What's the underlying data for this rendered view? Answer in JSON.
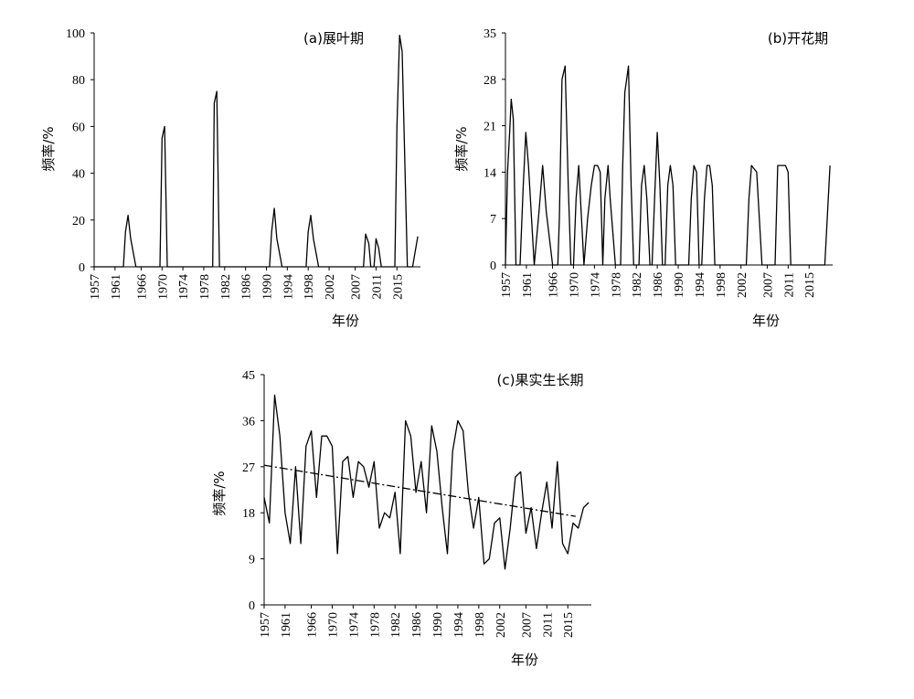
{
  "chart_data": [
    {
      "type": "line",
      "title": "(a)展叶期",
      "xlabel": "年份",
      "ylabel": "频率/%",
      "ylim": [
        0,
        100
      ],
      "yticks": [
        0,
        20,
        40,
        60,
        80,
        100
      ],
      "xticks": [
        1957,
        1961,
        1966,
        1970,
        1974,
        1978,
        1982,
        1986,
        1990,
        1994,
        1998,
        2002,
        2007,
        2011,
        2015
      ],
      "xlim": [
        1957,
        2019.5
      ],
      "series": [
        {
          "x": [
            1957,
            1958,
            1959,
            1960,
            1961,
            1962,
            1962.6,
            1963,
            1963.5,
            1964,
            1965,
            1966,
            1967,
            1968,
            1969,
            1969.6,
            1970,
            1970.5,
            1971,
            1972,
            1973,
            1974,
            1975,
            1976,
            1977,
            1978,
            1979,
            1979.7,
            1980,
            1980.5,
            1981,
            1982,
            1983,
            1984,
            1985,
            1986,
            1987,
            1988,
            1989,
            1990,
            1990.6,
            1991,
            1991.5,
            1992,
            1993,
            1994,
            1995,
            1996,
            1997,
            1997.6,
            1998,
            1998.5,
            1999,
            2000,
            2001,
            2002,
            2003,
            2004,
            2005,
            2006,
            2007,
            2008,
            2008.6,
            2009,
            2009.6,
            2010,
            2010.6,
            2011,
            2011.5,
            2012,
            2013,
            2014,
            2014.6,
            2015,
            2015.5,
            2016,
            2017,
            2018,
            2019
          ],
          "y": [
            0,
            0,
            0,
            0,
            0,
            0,
            0,
            15,
            22,
            12,
            0,
            0,
            0,
            0,
            0,
            0,
            55,
            60,
            0,
            0,
            0,
            0,
            0,
            0,
            0,
            0,
            0,
            0,
            70,
            75,
            0,
            0,
            0,
            0,
            0,
            0,
            0,
            0,
            0,
            0,
            0,
            15,
            25,
            12,
            0,
            0,
            0,
            0,
            0,
            0,
            15,
            22,
            12,
            0,
            0,
            0,
            0,
            0,
            0,
            0,
            0,
            0,
            0,
            14,
            10,
            0,
            0,
            12,
            8,
            0,
            0,
            0,
            0,
            60,
            99,
            92,
            0,
            0,
            13
          ]
        }
      ]
    },
    {
      "type": "line",
      "title": "(b)开花期",
      "xlabel": "年份",
      "ylabel": "频率/%",
      "ylim": [
        0,
        35
      ],
      "yticks": [
        0,
        7,
        14,
        21,
        28,
        35
      ],
      "xticks": [
        1957,
        1961,
        1966,
        1970,
        1974,
        1978,
        1982,
        1986,
        1990,
        1994,
        1998,
        2002,
        2007,
        2011,
        2015
      ],
      "xlim": [
        1957,
        2019.5
      ],
      "series": [
        {
          "x": [
            1957,
            1957.4,
            1957.8,
            1958.1,
            1958.5,
            1959,
            1959.8,
            1960.4,
            1960.9,
            1961.4,
            1962.5,
            1963.4,
            1964.1,
            1964.8,
            1966,
            1966.5,
            1967,
            1967.3,
            1967.8,
            1968.4,
            1969,
            1969.5,
            1970,
            1970.5,
            1971,
            1972,
            1972.7,
            1973.4,
            1974,
            1974.6,
            1975.1,
            1975.6,
            1976,
            1976.6,
            1977,
            1978,
            1978.6,
            1979,
            1979.4,
            1979.8,
            1980.5,
            1981,
            1981.5,
            1982,
            1982.5,
            1983,
            1983.5,
            1984,
            1984.6,
            1985,
            1985.5,
            1986,
            1986.5,
            1987,
            1987.5,
            1988,
            1988.5,
            1989,
            1989.5,
            1990,
            1990.5,
            1991,
            1991.5,
            1992,
            1992.5,
            1993,
            1993.5,
            1994,
            1994.5,
            1995,
            1995.5,
            1996,
            1996.5,
            1997,
            1998,
            1999,
            2000,
            2001,
            2002,
            2002.5,
            2003,
            2003.5,
            2004,
            2005,
            2006,
            2007,
            2007.5,
            2008,
            2008.5,
            2009,
            2009.5,
            2010,
            2010.5,
            2011,
            2011.5,
            2012,
            2013,
            2014,
            2015,
            2016,
            2017,
            2018,
            2019
          ],
          "y": [
            0,
            14,
            20,
            25,
            22,
            0,
            0,
            12,
            20,
            15,
            0,
            8,
            15,
            8,
            0,
            0,
            0,
            7,
            28,
            30,
            12,
            0,
            0,
            10,
            15,
            0,
            7,
            12,
            15,
            15,
            14,
            0,
            10,
            15,
            10,
            0,
            0,
            0,
            15,
            26,
            30,
            12,
            0,
            0,
            0,
            12,
            15,
            10,
            0,
            0,
            10,
            20,
            12,
            0,
            0,
            12,
            15,
            12,
            0,
            0,
            0,
            0,
            0,
            0,
            10,
            15,
            14,
            0,
            0,
            10,
            15,
            15,
            12,
            0,
            0,
            0,
            0,
            0,
            0,
            0,
            0,
            10,
            15,
            14,
            0,
            0,
            0,
            0,
            0,
            15,
            15,
            15,
            15,
            14,
            0,
            0,
            0,
            0,
            0,
            0,
            0,
            0,
            15
          ]
        }
      ]
    },
    {
      "type": "line",
      "title": "(c)果实生长期",
      "xlabel": "年份",
      "ylabel": "频率/%",
      "ylim": [
        0,
        45
      ],
      "yticks": [
        0,
        9,
        18,
        27,
        36,
        45
      ],
      "xticks": [
        1957,
        1961,
        1966,
        1970,
        1974,
        1978,
        1982,
        1986,
        1990,
        1994,
        1998,
        2002,
        2007,
        2011,
        2015
      ],
      "xlim": [
        1957,
        2019.5
      ],
      "series": [
        {
          "x": [
            1957,
            1958,
            1959,
            1960,
            1961,
            1962,
            1963,
            1964,
            1965,
            1966,
            1967,
            1968,
            1969,
            1970,
            1971,
            1972,
            1973,
            1974,
            1975,
            1976,
            1977,
            1978,
            1979,
            1980,
            1981,
            1982,
            1983,
            1984,
            1985,
            1986,
            1987,
            1988,
            1989,
            1990,
            1991,
            1992,
            1993,
            1994,
            1995,
            1996,
            1997,
            1998,
            1999,
            2000,
            2001,
            2002,
            2003,
            2004,
            2005,
            2006,
            2007,
            2008,
            2009,
            2010,
            2011,
            2012,
            2013,
            2014,
            2015,
            2016,
            2017,
            2018,
            2019
          ],
          "y": [
            21,
            16,
            41,
            33,
            18,
            12,
            27,
            12,
            31,
            34,
            21,
            33,
            33,
            31,
            10,
            28,
            29,
            21,
            28,
            27,
            23,
            28,
            15,
            18,
            17,
            22,
            10,
            36,
            33,
            22,
            28,
            18,
            35,
            30,
            19,
            10,
            30,
            36,
            34,
            22,
            15,
            21,
            8,
            9,
            16,
            17,
            7,
            15,
            25,
            26,
            14,
            19,
            11,
            18,
            24,
            15,
            28,
            12,
            10,
            16,
            15,
            19,
            20
          ]
        }
      ],
      "trend": {
        "x": [
          1957,
          2016.5
        ],
        "y": [
          27.3,
          17.3
        ]
      }
    }
  ]
}
